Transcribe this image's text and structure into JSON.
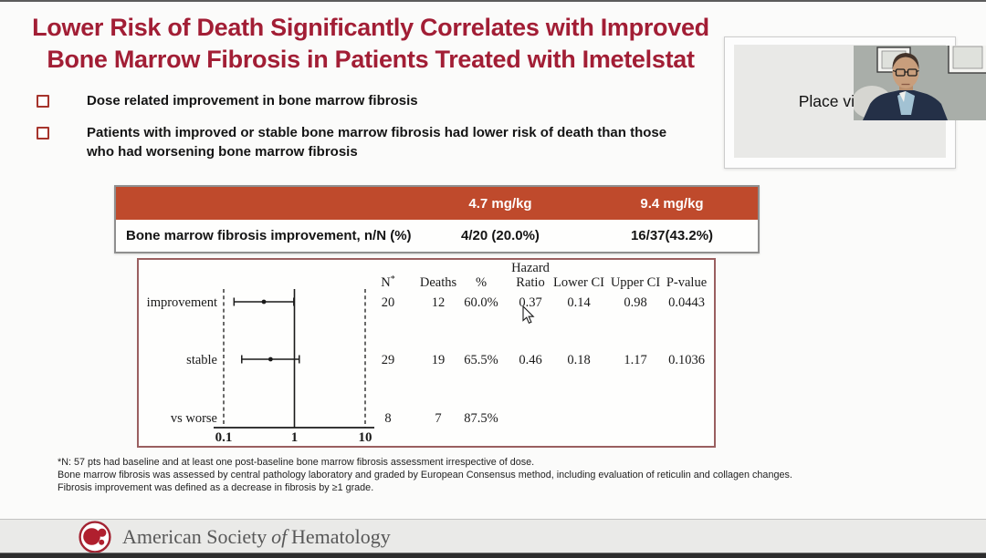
{
  "slide": {
    "title_line1": "Lower Risk of Death Significantly Correlates with Improved",
    "title_line2": "Bone Marrow Fibrosis in Patients Treated with Imetelstat",
    "bullets": [
      "Dose related improvement in bone marrow fibrosis",
      "Patients with improved or stable bone marrow fibrosis had lower risk of death than those who had worsening bone marrow fibrosis"
    ]
  },
  "video": {
    "placeholder_text": "Place video"
  },
  "dose_table": {
    "headers": [
      "",
      "4.7 mg/kg",
      "9.4 mg/kg"
    ],
    "row_label": "Bone marrow fibrosis improvement, n/N (%)",
    "values": [
      "4/20 (20.0%)",
      "16/37(43.2%)"
    ],
    "header_bg": "#bf4a2c"
  },
  "chart_data": {
    "type": "forest",
    "title": "",
    "x_scale": "log",
    "x_range": [
      0.1,
      10
    ],
    "x_ticks": [
      "0.1",
      "1",
      "10"
    ],
    "reference_line": 1,
    "columns": [
      "N*",
      "Deaths",
      "%",
      "Hazard Ratio",
      "Lower CI",
      "Upper CI",
      "P-value"
    ],
    "rows": [
      {
        "label": "improvement",
        "n": "20",
        "deaths": "12",
        "pct": "60.0%",
        "hr": 0.37,
        "lower": 0.14,
        "upper": 0.98,
        "p": "0.0443"
      },
      {
        "label": "stable",
        "n": "29",
        "deaths": "19",
        "pct": "65.5%",
        "hr": 0.46,
        "lower": 0.18,
        "upper": 1.17,
        "p": "0.1036"
      },
      {
        "label": "vs worse",
        "n": "8",
        "deaths": "7",
        "pct": "87.5%",
        "hr": null,
        "lower": null,
        "upper": null,
        "p": ""
      }
    ],
    "legend": null,
    "grid": false
  },
  "footnotes": [
    "*N: 57 pts had baseline and at least one post-baseline bone marrow fibrosis assessment irrespective of dose.",
    "Bone marrow fibrosis was assessed by central pathology laboratory and graded by European Consensus method, including evaluation of reticulin and collagen changes.",
    "Fibrosis improvement was defined as a decrease in fibrosis by ≥1 grade."
  ],
  "footer": {
    "org_part1": "American Society",
    "org_part2": "of",
    "org_part3": "Hematology"
  },
  "colors": {
    "title": "#a21e35",
    "table_header": "#bf4a2c",
    "panel_border": "#9a5f60",
    "footer_bg": "#eaeae8",
    "logo_red": "#b01f2e"
  }
}
